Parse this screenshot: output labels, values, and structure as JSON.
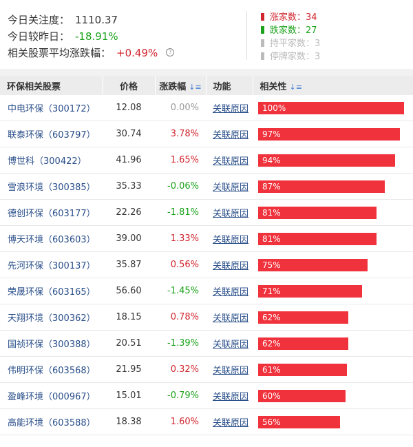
{
  "summary": {
    "attention_label": "今日关注度：",
    "attention_value": "1110.37",
    "vs_yesterday_label": "今日较昨日：",
    "vs_yesterday_value": "-18.91%",
    "avg_change_label": "相关股票平均涨跌幅：",
    "avg_change_value": "+0.49%",
    "info_icon": "?"
  },
  "counts": [
    {
      "label": "涨家数：34",
      "color": "#d0262e"
    },
    {
      "label": "跌家数：27",
      "color": "#1aa21a"
    },
    {
      "label": "持平家数：3",
      "color": "#bbbbbb"
    },
    {
      "label": "停牌家数：3",
      "color": "#bbbbbb"
    }
  ],
  "colors": {
    "up": "#d0262e",
    "down": "#1aa21a",
    "flat": "#999999",
    "bar": "#f0323c"
  },
  "table": {
    "headers": {
      "name": "环保相关股票",
      "price": "价格",
      "change": "涨跌幅",
      "function": "功能",
      "relevance": "相关性"
    },
    "sort_icon": "↓≡",
    "rows": [
      {
        "name": "中电环保（300172）",
        "price": "12.08",
        "change": "0.00%",
        "dir": "flat",
        "func": "关联原因",
        "rel": "100%",
        "rel_value": 1.0
      },
      {
        "name": "联泰环保（603797）",
        "price": "30.74",
        "change": "3.78%",
        "dir": "up",
        "func": "关联原因",
        "rel": "97%",
        "rel_value": 0.97
      },
      {
        "name": "博世科（300422）",
        "price": "41.96",
        "change": "1.65%",
        "dir": "up",
        "func": "关联原因",
        "rel": "94%",
        "rel_value": 0.94
      },
      {
        "name": "雪浪环境（300385）",
        "price": "35.33",
        "change": "-0.06%",
        "dir": "down",
        "func": "关联原因",
        "rel": "87%",
        "rel_value": 0.87
      },
      {
        "name": "德创环保（603177）",
        "price": "22.26",
        "change": "-1.81%",
        "dir": "down",
        "func": "关联原因",
        "rel": "81%",
        "rel_value": 0.81
      },
      {
        "name": "博天环境（603603）",
        "price": "39.00",
        "change": "1.33%",
        "dir": "up",
        "func": "关联原因",
        "rel": "81%",
        "rel_value": 0.81
      },
      {
        "name": "先河环保（300137）",
        "price": "35.87",
        "change": "0.56%",
        "dir": "up",
        "func": "关联原因",
        "rel": "75%",
        "rel_value": 0.75
      },
      {
        "name": "荣晟环保（603165）",
        "price": "56.60",
        "change": "-1.45%",
        "dir": "down",
        "func": "关联原因",
        "rel": "71%",
        "rel_value": 0.71
      },
      {
        "name": "天翔环境（300362）",
        "price": "18.15",
        "change": "0.78%",
        "dir": "up",
        "func": "关联原因",
        "rel": "62%",
        "rel_value": 0.62
      },
      {
        "name": "国祯环保（300388）",
        "price": "20.51",
        "change": "-1.39%",
        "dir": "down",
        "func": "关联原因",
        "rel": "62%",
        "rel_value": 0.62
      },
      {
        "name": "伟明环保（603568）",
        "price": "21.95",
        "change": "0.32%",
        "dir": "up",
        "func": "关联原因",
        "rel": "61%",
        "rel_value": 0.61
      },
      {
        "name": "盈峰环境（000967）",
        "price": "15.01",
        "change": "-0.79%",
        "dir": "down",
        "func": "关联原因",
        "rel": "60%",
        "rel_value": 0.6
      },
      {
        "name": "高能环境（603588）",
        "price": "18.38",
        "change": "1.60%",
        "dir": "up",
        "func": "关联原因",
        "rel": "56%",
        "rel_value": 0.56
      }
    ]
  }
}
